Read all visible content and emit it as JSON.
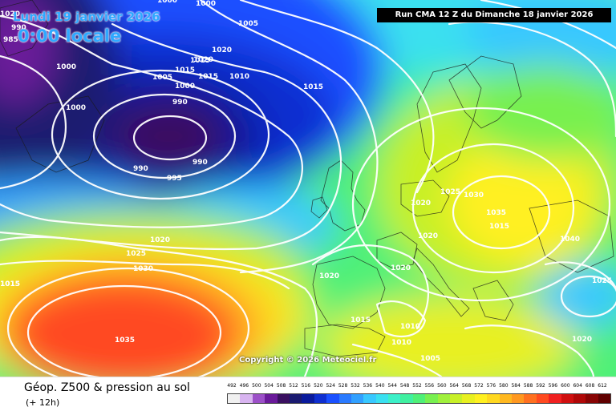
{
  "header": {
    "date": "Lundi 19 janvier 2026",
    "time": "0:00 locale",
    "run_info": "Run CMA 12 Z du Dimanche 18 janvier 2026"
  },
  "copyright": "Copyright © 2026 Meteociel.fr",
  "footer": {
    "field_title": "Géop. Z500 & pression au sol",
    "lead_time": "(+ 12h)"
  },
  "isobar_labels": [
    "1000",
    "990",
    "985",
    "1005",
    "1000",
    "1000",
    "1020",
    "1015",
    "1010",
    "1020",
    "1005",
    "1015",
    "1000",
    "1015",
    "1000",
    "990",
    "990",
    "990",
    "995",
    "1015",
    "1020",
    "1025",
    "1030",
    "1020",
    "1035",
    "1015",
    "1020",
    "1040",
    "1020",
    "1020",
    "1025",
    "1030",
    "1035",
    "1015",
    "1020",
    "1015",
    "1010",
    "1010",
    "1005",
    "1020",
    "1025",
    "1015"
  ],
  "legend": {
    "values": [
      "492",
      "496",
      "500",
      "504",
      "508",
      "512",
      "516",
      "520",
      "524",
      "528",
      "532",
      "536",
      "540",
      "544",
      "548",
      "552",
      "556",
      "560",
      "564",
      "568",
      "572",
      "576",
      "580",
      "584",
      "588",
      "592",
      "596",
      "600",
      "604",
      "608",
      "612"
    ],
    "colors": [
      "#f0f0f0",
      "#d8b4f0",
      "#9c50c8",
      "#6a1a9a",
      "#3a1060",
      "#1a1a70",
      "#0a1a9c",
      "#0f2fd0",
      "#1a50ff",
      "#2a7aff",
      "#31a0ff",
      "#38c8ff",
      "#3ae0f0",
      "#3cf0c8",
      "#40f0a0",
      "#4ff078",
      "#78f050",
      "#a0f03c",
      "#c8f028",
      "#e8f020",
      "#fff020",
      "#ffd820",
      "#ffb820",
      "#ff9820",
      "#ff7020",
      "#ff4a20",
      "#f02020",
      "#d01010",
      "#b00808",
      "#880404",
      "#600000"
    ]
  }
}
